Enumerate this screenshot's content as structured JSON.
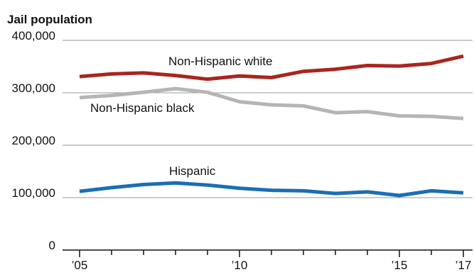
{
  "chart_data": {
    "type": "line",
    "title": "Jail population",
    "x": [
      2005,
      2006,
      2007,
      2008,
      2009,
      2010,
      2011,
      2012,
      2013,
      2014,
      2015,
      2016,
      2017
    ],
    "x_tick_labels": [
      {
        "x": 2005,
        "label": "’05"
      },
      {
        "x": 2010,
        "label": "’10"
      },
      {
        "x": 2015,
        "label": "’15"
      },
      {
        "x": 2017,
        "label": "’17"
      }
    ],
    "y_ticks": [
      {
        "value": 0,
        "label": "0"
      },
      {
        "value": 100000,
        "label": "100,000"
      },
      {
        "value": 200000,
        "label": "200,000"
      },
      {
        "value": 300000,
        "label": "300,000"
      },
      {
        "value": 400000,
        "label": "400,000"
      }
    ],
    "ylim": [
      0,
      400000
    ],
    "xlim": [
      2005,
      2017
    ],
    "grid": true,
    "series": [
      {
        "name": "Non-Hispanic white",
        "color": "#a8261e",
        "values": [
          331000,
          336000,
          338000,
          333000,
          326000,
          332000,
          329000,
          341000,
          345000,
          352000,
          351000,
          356000,
          370000
        ]
      },
      {
        "name": "Non-Hispanic black",
        "color": "#b5b5b5",
        "values": [
          291000,
          295000,
          301000,
          308000,
          301000,
          283000,
          277000,
          275000,
          262000,
          264000,
          256000,
          255000,
          251000
        ]
      },
      {
        "name": "Hispanic",
        "color": "#1a6eb5",
        "values": [
          112000,
          119000,
          125000,
          128000,
          124000,
          118000,
          114000,
          113000,
          108000,
          111000,
          104000,
          113000,
          109000
        ]
      }
    ]
  }
}
